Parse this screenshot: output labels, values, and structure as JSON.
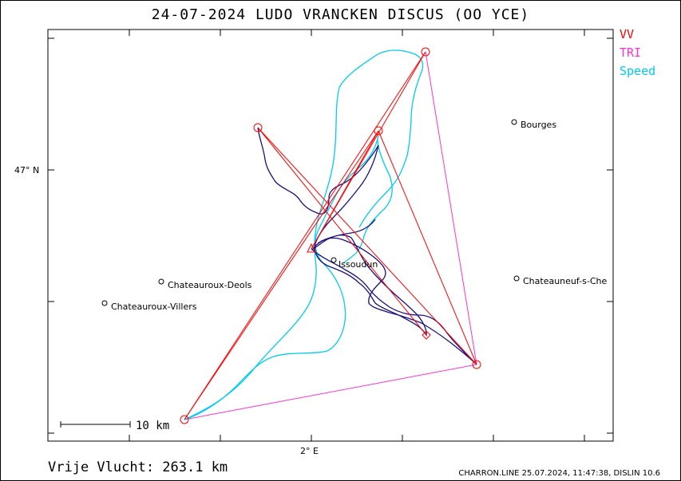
{
  "title": "24-07-2024   LUDO VRANCKEN   DISCUS (OO YCE)",
  "legend": [
    {
      "label": "VV",
      "color": "#ff0000"
    },
    {
      "label": "TRI",
      "color": "#ff33cc"
    },
    {
      "label": "Speed",
      "color": "#00ccee"
    }
  ],
  "axes": {
    "lat_label": "47° N",
    "lon_label": "2° E"
  },
  "places": [
    {
      "name": "Bourges"
    },
    {
      "name": "Chateauroux-Deols"
    },
    {
      "name": "Chateauroux-Villers"
    },
    {
      "name": "Issoudun"
    },
    {
      "name": "Chateauneuf-s-Che"
    }
  ],
  "scale_bar": "10  km",
  "distance": "Vrije Vlucht:  263.1 km",
  "footer": "CHARRON.LINE 25.07.2024, 11:47:38, DISLIN 10.6",
  "colors": {
    "track": "#1a1080",
    "vv": "#ff0000",
    "tri": "#ff33cc",
    "speed": "#00ccee"
  }
}
